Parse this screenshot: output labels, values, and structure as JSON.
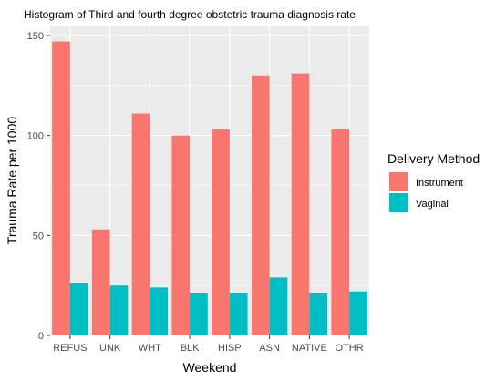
{
  "chart_data": {
    "type": "bar",
    "title": "Histogram of Third and fourth degree obstetric trauma diagnosis rate",
    "xlabel": "Weekend",
    "ylabel": "Trauma Rate per 1000",
    "categories": [
      "REFUS",
      "UNK",
      "WHT",
      "BLK",
      "HISP",
      "ASN",
      "NATIVE",
      "OTHR"
    ],
    "series": [
      {
        "name": "Instrument",
        "color": "#F8766D",
        "values": [
          147,
          53,
          111,
          100,
          103,
          130,
          131,
          103
        ]
      },
      {
        "name": "Vaginal",
        "color": "#00BFC4",
        "values": [
          26,
          25,
          24,
          21,
          21,
          29,
          21,
          22
        ]
      }
    ],
    "ylim": [
      0,
      155
    ],
    "yticks": [
      0,
      50,
      100,
      150
    ],
    "grid": true,
    "panel_background": "#EBEBEB",
    "legend": {
      "title": "Delivery Method",
      "position": "right"
    }
  }
}
